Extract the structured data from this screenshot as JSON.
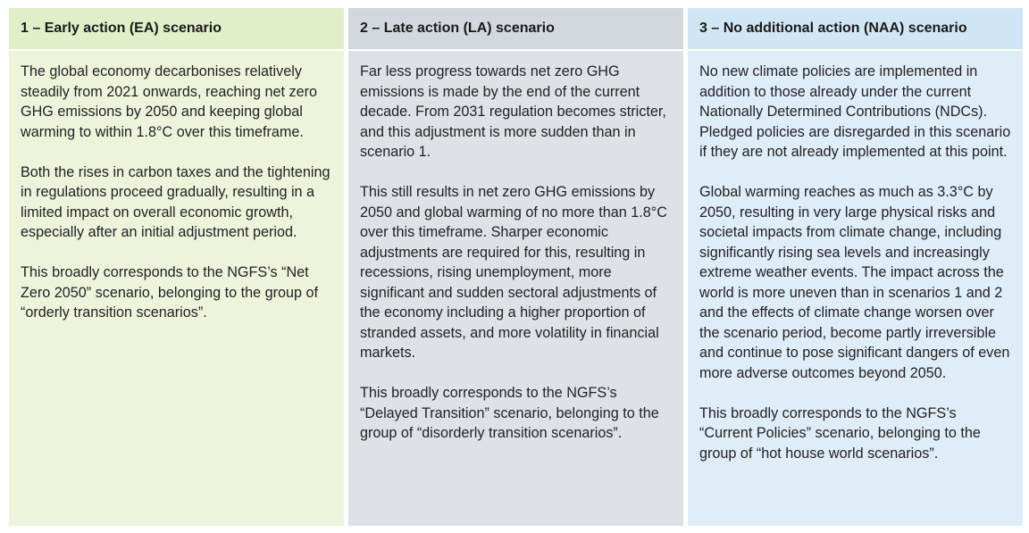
{
  "columns": [
    {
      "title": "1 – Early action (EA) scenario",
      "paragraphs": [
        "The global economy decarbonises relatively steadily from 2021 onwards, reaching net zero GHG emissions by 2050 and keeping global warming to within 1.8°C over this timeframe.",
        "Both the rises in carbon taxes and the tightening in regulations proceed gradually, resulting in a limited impact on overall economic growth, especially after an initial adjustment period.",
        "This broadly corresponds to the NGFS’s “Net Zero 2050” scenario, belonging to the group of “orderly transition scenarios”."
      ]
    },
    {
      "title": "2 – Late action (LA) scenario",
      "paragraphs": [
        "Far less progress towards net zero GHG emissions is made by the end of the current decade. From 2031 regulation becomes stricter, and this adjustment is more sudden than in scenario 1.",
        "This still results in net zero GHG emissions by 2050 and global warming of no more than 1.8°C over this timeframe. Sharper economic adjustments are required for this, resulting in recessions, rising unemployment, more significant and sudden sectoral adjustments of the economy including a higher proportion of stranded assets, and more volatility in financial markets.",
        "This broadly corresponds to the NGFS’s “Delayed Transition” scenario, belonging to the group of “disorderly transition scenarios”."
      ]
    },
    {
      "title": "3 – No additional action (NAA) scenario",
      "paragraphs": [
        "No new climate policies are implemented in addition to those already under the current Nationally Determined Contributions (NDCs). Pledged policies are disregarded in this scenario if they are not already implemented at this point.",
        "Global warming reaches as much as 3.3°C by 2050, resulting in very large physical risks and societal impacts from climate change, including significantly rising sea levels and increasingly extreme weather events. The impact across the world is more uneven than in scenarios 1 and 2 and the effects of climate change worsen over the scenario period, become partly irreversible and continue to pose significant dangers of even more adverse outcomes beyond 2050.",
        "This broadly corresponds to the NGFS’s “Current Policies” scenario, belonging to the group of “hot house world scenarios”."
      ]
    }
  ]
}
